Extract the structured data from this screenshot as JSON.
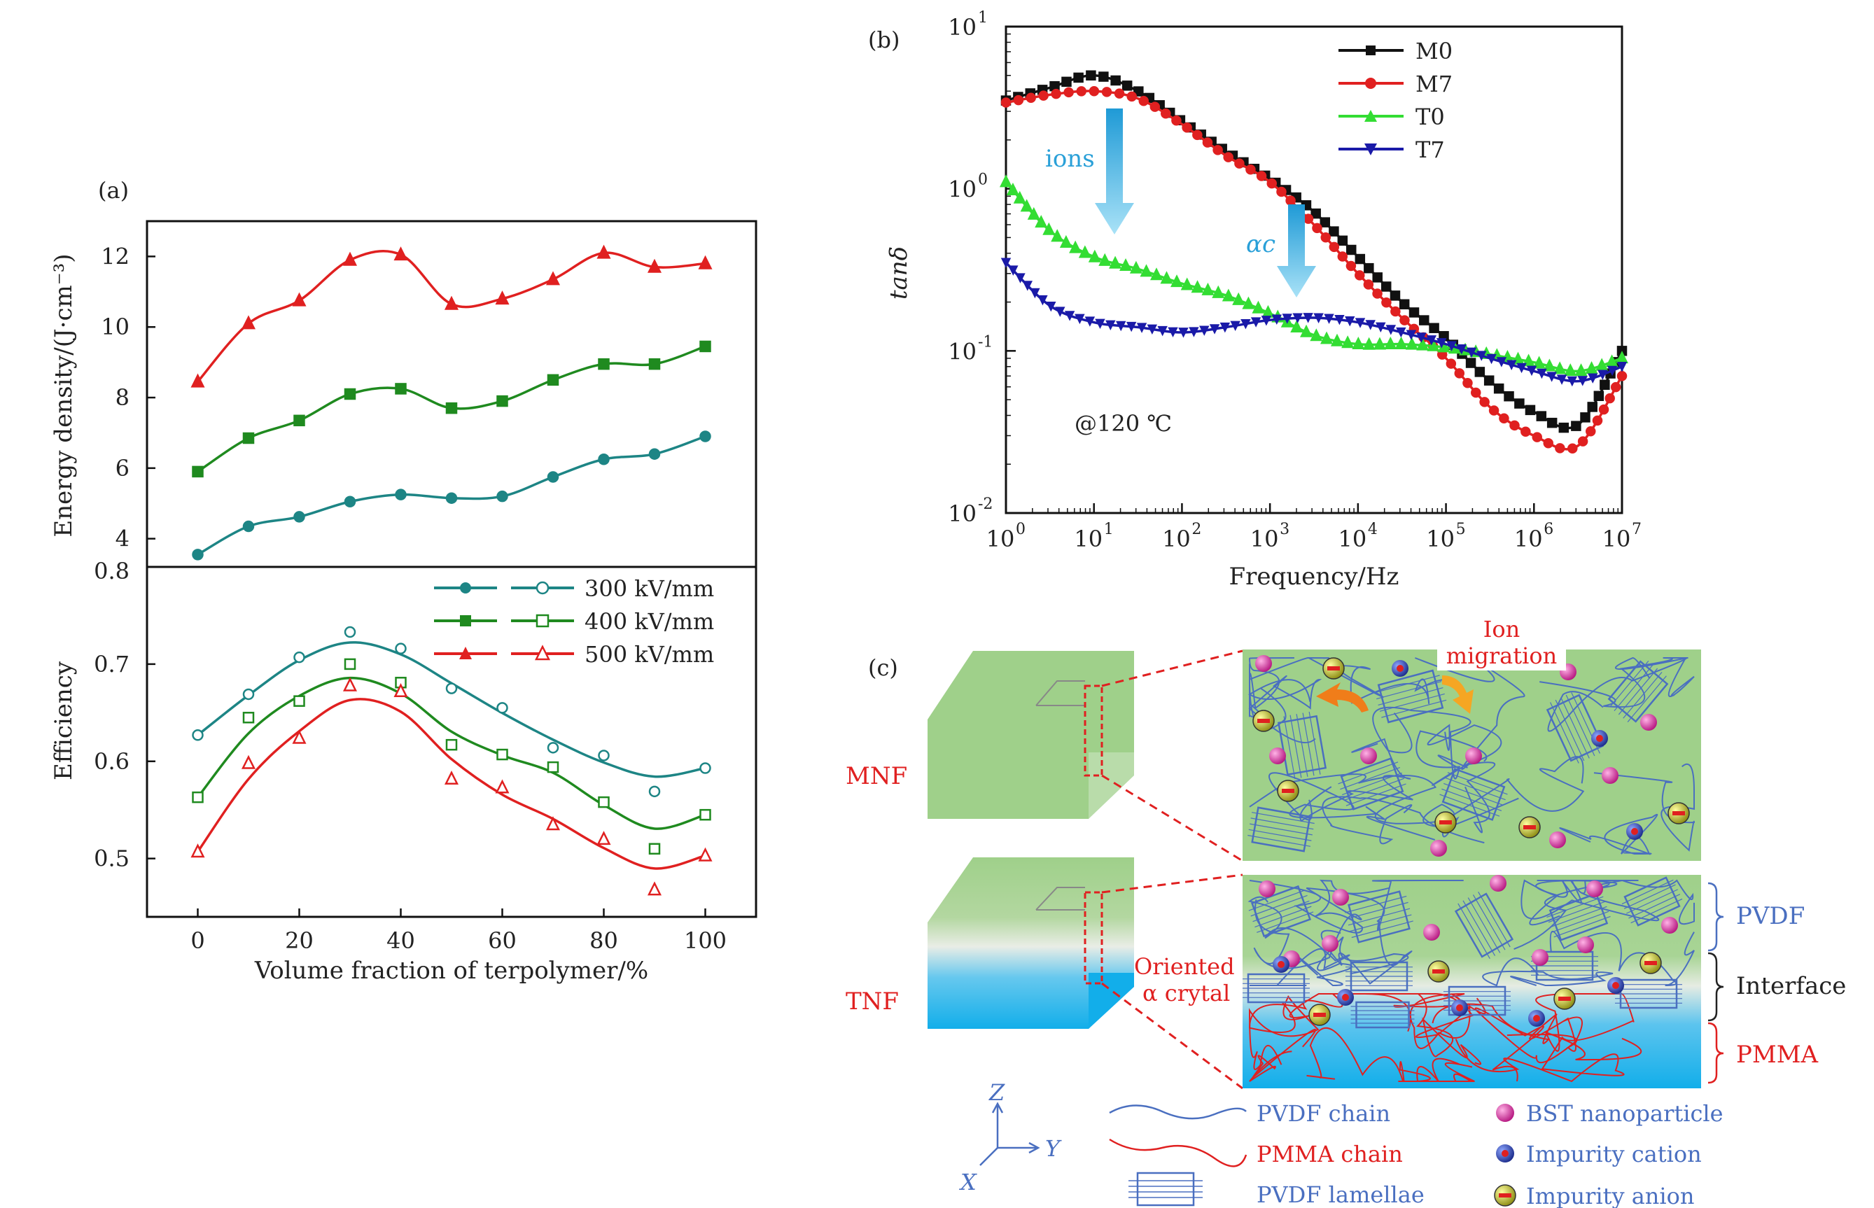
{
  "panel_a": {
    "panel_label": "(a)",
    "top_ylabel": "Energy density/(J·cm⁻³)",
    "bottom_ylabel": "Efficiency",
    "xlabel": "Volume fraction of terpolymer/%",
    "legend": [
      "300 kV/mm",
      "400 kV/mm",
      "500 kV/mm"
    ]
  },
  "panel_b": {
    "panel_label": "(b)",
    "ylabel": "tanδ",
    "xlabel": "Frequency/Hz",
    "legend": [
      "M0",
      "M7",
      "T0",
      "T7"
    ],
    "annotation_ions": "ions",
    "annotation_alpha": "αc",
    "annotation_temp": "@120 ℃"
  },
  "panel_c": {
    "panel_label": "(c)",
    "mnf_label": "MNF",
    "tnf_label": "TNF",
    "ion_migration": [
      "Ion",
      "migration"
    ],
    "oriented_label": [
      "Oriented",
      "α crytal"
    ],
    "layer_pvdf": "PVDF",
    "layer_interface": "Interface",
    "layer_pmma": "PMMA",
    "axis_z": "Z",
    "axis_y": "Y",
    "axis_x": "X",
    "legend_pvdf_chain": "PVDF chain",
    "legend_pmma_chain": "PMMA chain",
    "legend_pvdf_lamellae": "PVDF lamellae",
    "legend_bst": "BST nanoparticle",
    "legend_cation": "Impurity cation",
    "legend_anion": "Impurity anion"
  },
  "colors": {
    "s300": "#1d8585",
    "s400": "#1f8a1f",
    "s500": "#e02020",
    "M0": "#111111",
    "M7": "#e02020",
    "T0": "#33dd33",
    "T7": "#1a1aa8",
    "ion_arrow": "#22a9e0",
    "green_bg": "#9fd08a",
    "blue_bg": "#12aeea",
    "pvdf_blue": "#4a6fc0",
    "pmma_red": "#e02020",
    "bst_magenta": "#d6239a"
  },
  "chart_data": [
    {
      "type": "line",
      "title": "",
      "xlabel": "Volume fraction of terpolymer/%",
      "ylabel": "Energy density/(J·cm⁻³)",
      "xlim": [
        -10,
        110
      ],
      "ylim": [
        3.2,
        13
      ],
      "xticks": [
        "0",
        "20",
        "40",
        "60",
        "80",
        "100"
      ],
      "yticks": [
        "4",
        "6",
        "8",
        "10",
        "12"
      ],
      "x": [
        0,
        10,
        20,
        30,
        40,
        50,
        60,
        70,
        80,
        90,
        100
      ],
      "series": [
        {
          "name": "300 kV/mm",
          "values": [
            3.55,
            4.35,
            4.62,
            5.05,
            5.25,
            5.15,
            5.2,
            5.75,
            6.25,
            6.4,
            6.9
          ]
        },
        {
          "name": "400 kV/mm",
          "values": [
            5.9,
            6.85,
            7.35,
            8.1,
            8.25,
            7.7,
            7.9,
            8.5,
            8.95,
            8.95,
            9.45
          ]
        },
        {
          "name": "500 kV/mm",
          "values": [
            8.45,
            10.1,
            10.75,
            11.9,
            12.05,
            10.65,
            10.8,
            11.35,
            12.1,
            11.7,
            11.8
          ]
        }
      ]
    },
    {
      "type": "scatter",
      "title": "",
      "xlabel": "Volume fraction of terpolymer/%",
      "ylabel": "Efficiency",
      "xlim": [
        -10,
        110
      ],
      "ylim": [
        0.44,
        0.8
      ],
      "xticks": [
        "0",
        "20",
        "40",
        "60",
        "80",
        "100"
      ],
      "yticks": [
        "0.5",
        "0.6",
        "0.7",
        "0.8"
      ],
      "x": [
        0,
        10,
        20,
        30,
        40,
        50,
        60,
        70,
        80,
        90,
        100
      ],
      "series": [
        {
          "name": "300 kV/mm",
          "values": [
            0.627,
            0.669,
            0.707,
            0.733,
            0.716,
            0.675,
            0.655,
            0.614,
            0.606,
            0.569,
            0.593
          ]
        },
        {
          "name": "400 kV/mm",
          "values": [
            0.563,
            0.645,
            0.662,
            0.7,
            0.681,
            0.617,
            0.607,
            0.594,
            0.558,
            0.51,
            0.545
          ]
        },
        {
          "name": "500 kV/mm",
          "values": [
            0.507,
            0.598,
            0.624,
            0.678,
            0.672,
            0.582,
            0.573,
            0.535,
            0.52,
            0.468,
            0.503
          ]
        }
      ]
    },
    {
      "type": "line",
      "title": "",
      "xlabel": "Frequency/Hz",
      "ylabel": "tanδ",
      "xscale": "log",
      "yscale": "log",
      "xlim": [
        1,
        10000000
      ],
      "ylim": [
        0.01,
        10
      ],
      "xticks": [
        "10^0",
        "10^1",
        "10^2",
        "10^3",
        "10^4",
        "10^5",
        "10^6",
        "10^7"
      ],
      "yticks": [
        "10^-2",
        "10^-1",
        "10^0",
        "10^1"
      ],
      "x": [
        1,
        3.16,
        10,
        31.6,
        100,
        316,
        1000,
        3160,
        10000,
        31600,
        100000,
        316000,
        1000000,
        3160000,
        10000000
      ],
      "series": [
        {
          "name": "M0",
          "values": [
            3.5,
            4.2,
            5.0,
            4.0,
            2.6,
            1.7,
            1.15,
            0.72,
            0.38,
            0.2,
            0.12,
            0.065,
            0.042,
            0.035,
            0.1
          ]
        },
        {
          "name": "M7",
          "values": [
            3.4,
            3.8,
            4.0,
            3.6,
            2.5,
            1.6,
            1.1,
            0.6,
            0.3,
            0.16,
            0.09,
            0.045,
            0.03,
            0.026,
            0.07
          ]
        },
        {
          "name": "T0",
          "values": [
            1.1,
            0.55,
            0.38,
            0.32,
            0.26,
            0.22,
            0.17,
            0.125,
            0.11,
            0.11,
            0.105,
            0.095,
            0.085,
            0.075,
            0.09
          ]
        },
        {
          "name": "T7",
          "values": [
            0.35,
            0.19,
            0.15,
            0.14,
            0.13,
            0.14,
            0.155,
            0.16,
            0.15,
            0.13,
            0.11,
            0.09,
            0.075,
            0.065,
            0.08
          ]
        }
      ]
    }
  ]
}
